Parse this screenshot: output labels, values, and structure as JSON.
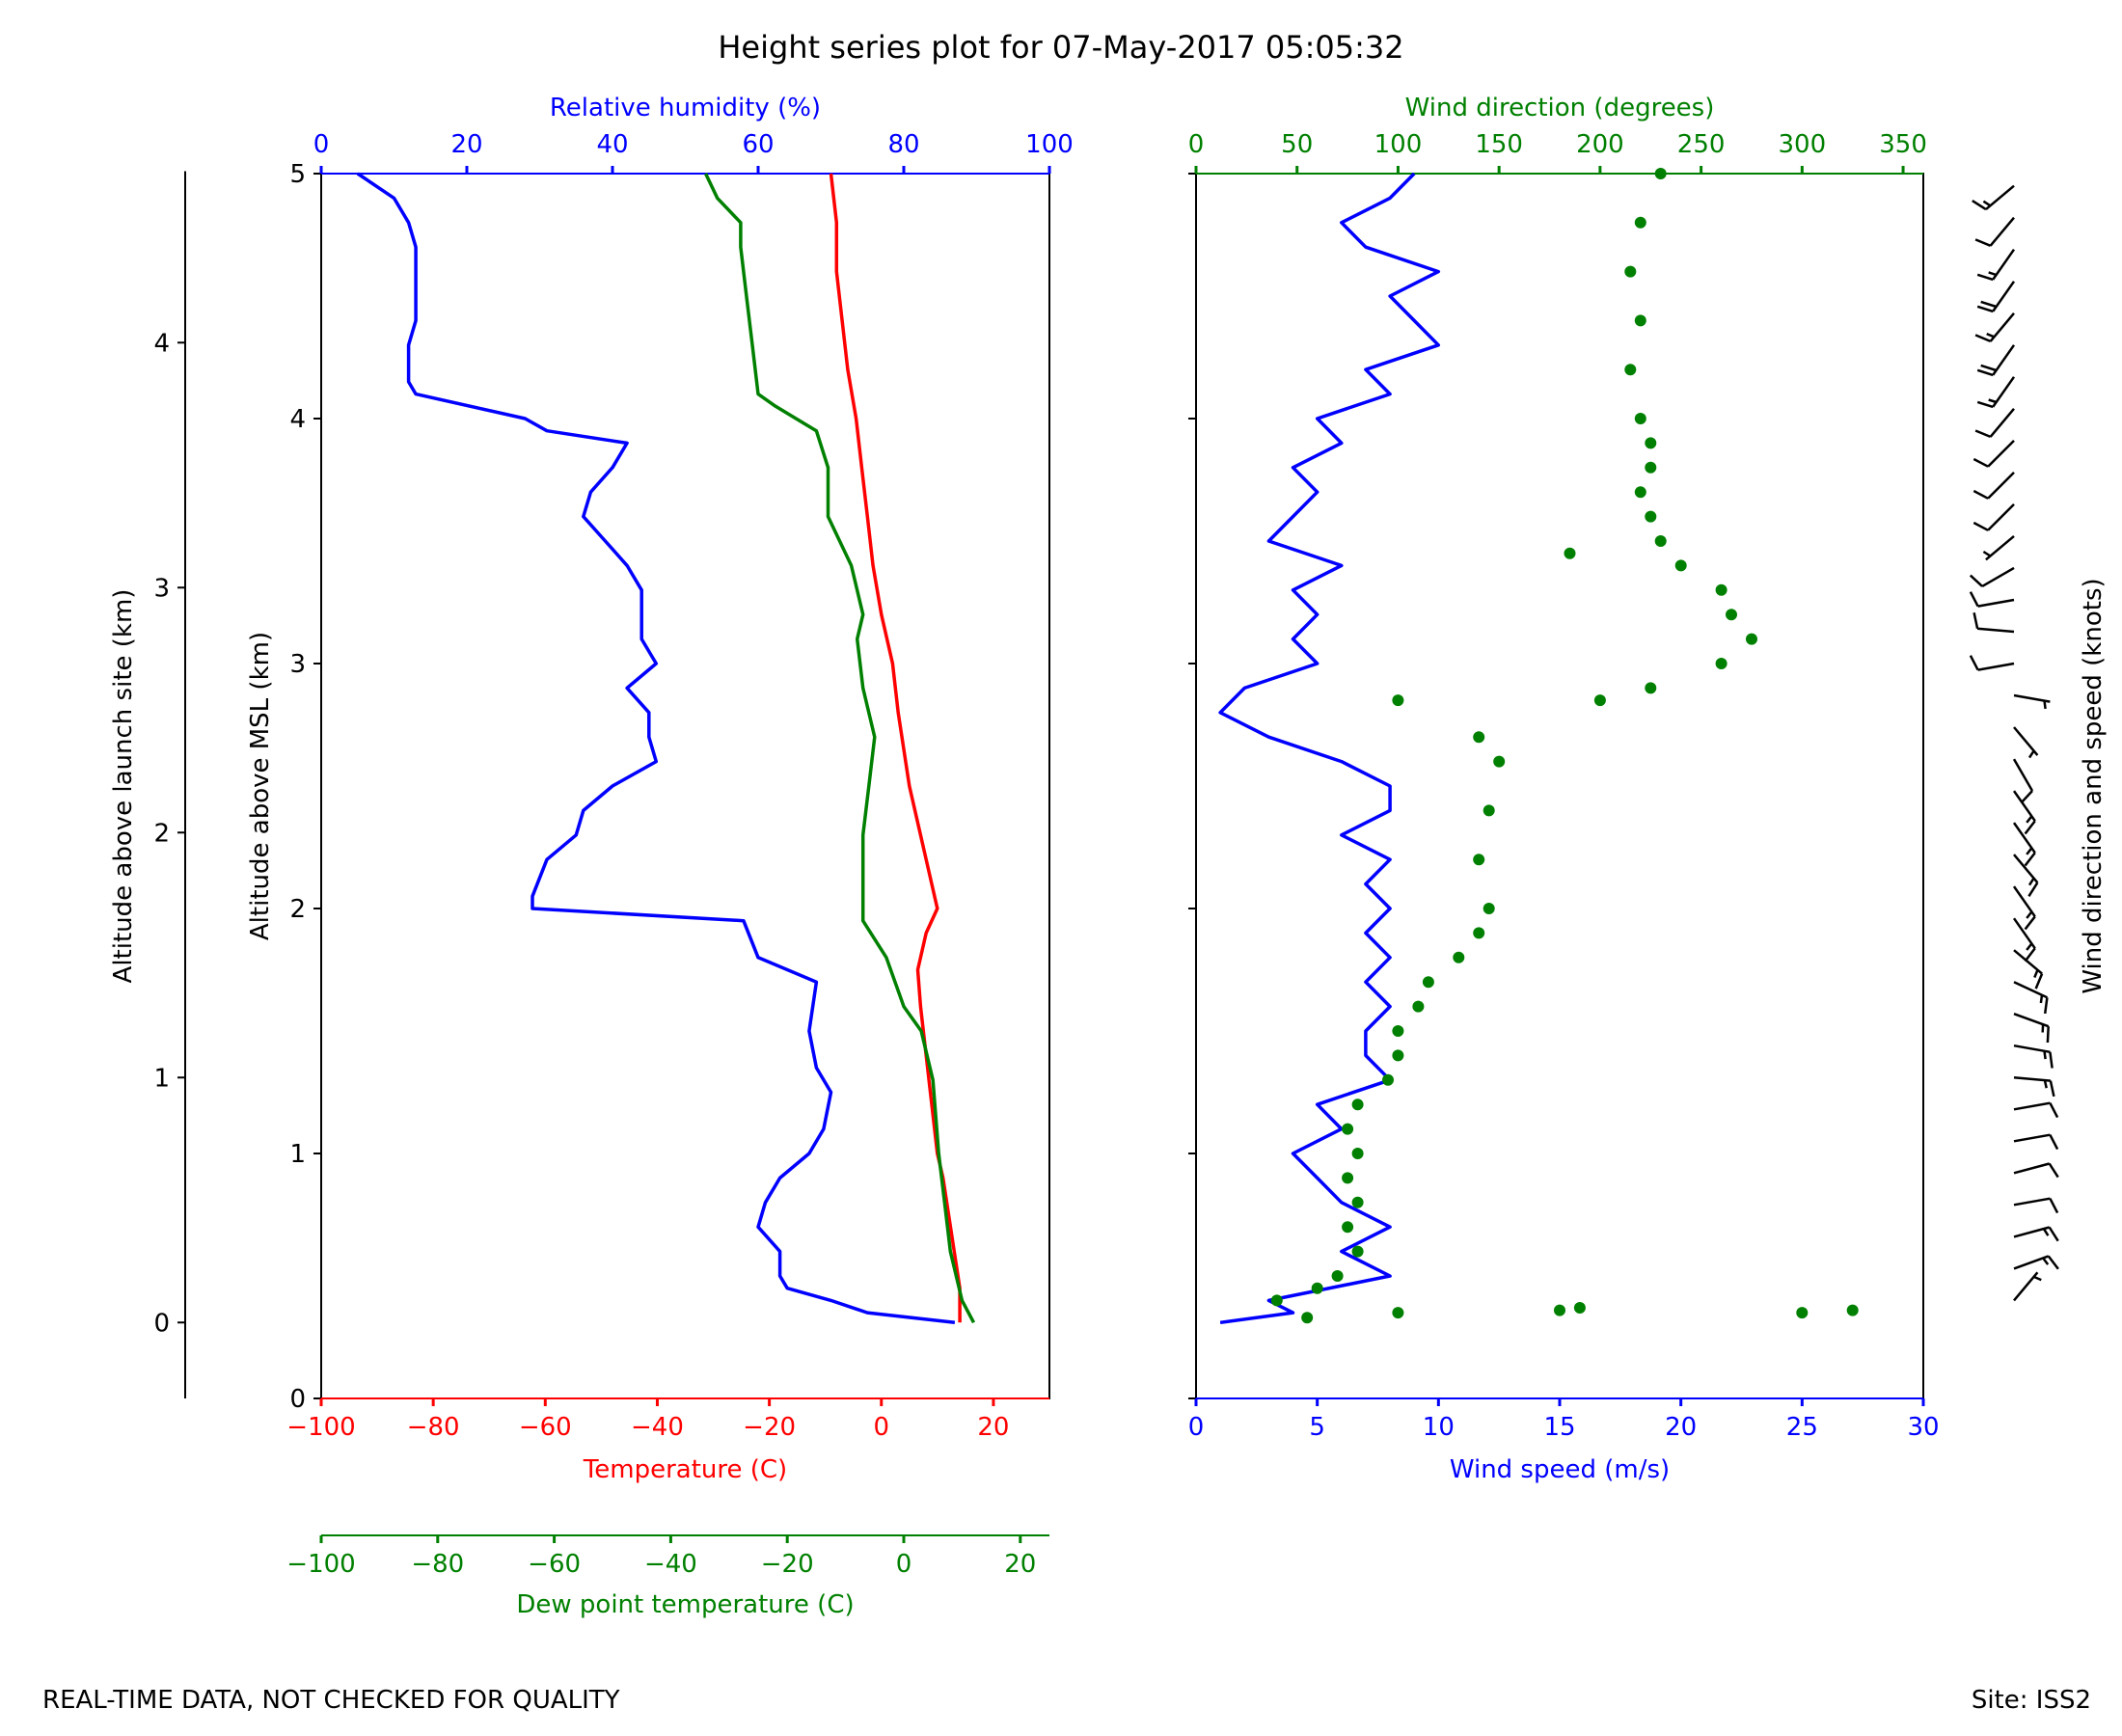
{
  "title": "Height series plot for 07-May-2017 05:05:32",
  "footer": {
    "left_note": "REAL-TIME DATA, NOT CHECKED FOR QUALITY",
    "site": "Site: ISS2"
  },
  "colors": {
    "temperature": "#ff0000",
    "dewpoint": "#008000",
    "rh": "#0000ff",
    "wind_speed": "#0000ff",
    "wind_dir": "#008000",
    "axis": "#000000"
  },
  "chart_data": [
    {
      "type": "line",
      "panel": "thermo",
      "ylabel_msl": "Altitude above MSL (km)",
      "ylabel_launch": "Altitude above launch site (km)",
      "ylim_msl": [
        0,
        5
      ],
      "yticks_msl": [
        "0",
        "1",
        "2",
        "3",
        "4",
        "5"
      ],
      "yticks_launch": [
        "0",
        "1",
        "2",
        "3",
        "4"
      ],
      "launch_site_elevation_km": 0.31,
      "temperature_axis": {
        "label": "Temperature (C)",
        "xlim": [
          -100,
          30
        ],
        "ticks": [
          "−100",
          "−80",
          "−60",
          "−40",
          "−20",
          "0",
          "20"
        ]
      },
      "dewpoint_axis": {
        "label": "Dew point temperature (C)",
        "xlim": [
          -100,
          25
        ],
        "ticks": [
          "−100",
          "−80",
          "−60",
          "−40",
          "−20",
          "0",
          "20"
        ]
      },
      "rh_axis": {
        "label": "Relative humidity (%)",
        "xlim": [
          0,
          100
        ],
        "ticks": [
          "0",
          "20",
          "40",
          "60",
          "80",
          "100"
        ]
      },
      "series": [
        {
          "name": "Temperature",
          "unit": "C",
          "axis": "temperature",
          "points": [
            [
              0.31,
              14
            ],
            [
              0.45,
              14
            ],
            [
              0.6,
              13
            ],
            [
              0.75,
              12
            ],
            [
              0.9,
              11
            ],
            [
              1.0,
              10
            ],
            [
              1.2,
              9
            ],
            [
              1.4,
              8
            ],
            [
              1.6,
              7
            ],
            [
              1.75,
              6.5
            ],
            [
              1.9,
              8
            ],
            [
              2.0,
              10
            ],
            [
              2.3,
              7
            ],
            [
              2.5,
              5
            ],
            [
              2.8,
              3
            ],
            [
              3.0,
              2
            ],
            [
              3.2,
              0
            ],
            [
              3.4,
              -1.5
            ],
            [
              3.6,
              -2.5
            ],
            [
              3.8,
              -3.5
            ],
            [
              4.0,
              -4.5
            ],
            [
              4.2,
              -6
            ],
            [
              4.4,
              -7
            ],
            [
              4.6,
              -8
            ],
            [
              4.8,
              -8
            ],
            [
              5.0,
              -9
            ]
          ]
        },
        {
          "name": "Dew point temperature",
          "unit": "C",
          "axis": "dewpoint",
          "points": [
            [
              0.31,
              12
            ],
            [
              0.4,
              10
            ],
            [
              0.6,
              8
            ],
            [
              0.8,
              7
            ],
            [
              1.0,
              6
            ],
            [
              1.3,
              5
            ],
            [
              1.5,
              3
            ],
            [
              1.6,
              0
            ],
            [
              1.8,
              -3
            ],
            [
              1.95,
              -7
            ],
            [
              2.1,
              -7
            ],
            [
              2.3,
              -7
            ],
            [
              2.5,
              -6
            ],
            [
              2.7,
              -5
            ],
            [
              2.9,
              -7
            ],
            [
              3.1,
              -8
            ],
            [
              3.2,
              -7
            ],
            [
              3.4,
              -9
            ],
            [
              3.6,
              -13
            ],
            [
              3.8,
              -13
            ],
            [
              3.95,
              -15
            ],
            [
              4.05,
              -22
            ],
            [
              4.1,
              -25
            ],
            [
              4.3,
              -26
            ],
            [
              4.5,
              -27
            ],
            [
              4.7,
              -28
            ],
            [
              4.8,
              -28
            ],
            [
              4.9,
              -32
            ],
            [
              5.0,
              -34
            ]
          ]
        },
        {
          "name": "Relative humidity",
          "unit": "%",
          "axis": "rh",
          "points": [
            [
              0.31,
              87
            ],
            [
              0.35,
              75
            ],
            [
              0.4,
              70
            ],
            [
              0.45,
              64
            ],
            [
              0.5,
              63
            ],
            [
              0.6,
              63
            ],
            [
              0.7,
              60
            ],
            [
              0.8,
              61
            ],
            [
              0.9,
              63
            ],
            [
              1.0,
              67
            ],
            [
              1.1,
              69
            ],
            [
              1.25,
              70
            ],
            [
              1.35,
              68
            ],
            [
              1.5,
              67
            ],
            [
              1.7,
              68
            ],
            [
              1.8,
              60
            ],
            [
              1.95,
              58
            ],
            [
              2.0,
              29
            ],
            [
              2.05,
              29
            ],
            [
              2.2,
              31
            ],
            [
              2.3,
              35
            ],
            [
              2.4,
              36
            ],
            [
              2.5,
              40
            ],
            [
              2.6,
              46
            ],
            [
              2.7,
              45
            ],
            [
              2.8,
              45
            ],
            [
              2.9,
              42
            ],
            [
              3.0,
              46
            ],
            [
              3.1,
              44
            ],
            [
              3.2,
              44
            ],
            [
              3.3,
              44
            ],
            [
              3.4,
              42
            ],
            [
              3.5,
              39
            ],
            [
              3.6,
              36
            ],
            [
              3.7,
              37
            ],
            [
              3.8,
              40
            ],
            [
              3.9,
              42
            ],
            [
              3.95,
              31
            ],
            [
              4.0,
              28
            ],
            [
              4.1,
              13
            ],
            [
              4.15,
              12
            ],
            [
              4.3,
              12
            ],
            [
              4.4,
              13
            ],
            [
              4.5,
              13
            ],
            [
              4.6,
              13
            ],
            [
              4.7,
              13
            ],
            [
              4.8,
              12
            ],
            [
              4.9,
              10
            ],
            [
              5.0,
              5
            ]
          ]
        }
      ]
    },
    {
      "type": "line_scatter",
      "panel": "wind",
      "ylim_msl": [
        0,
        5
      ],
      "speed_axis": {
        "label": "Wind speed (m/s)",
        "xlim": [
          0,
          30
        ],
        "ticks": [
          "0",
          "5",
          "10",
          "15",
          "20",
          "25",
          "30"
        ]
      },
      "direction_axis": {
        "label": "Wind direction (degrees)",
        "xlim": [
          0,
          360
        ],
        "ticks": [
          "0",
          "50",
          "100",
          "150",
          "200",
          "250",
          "300",
          "350"
        ]
      },
      "series": [
        {
          "name": "Wind speed",
          "unit": "m/s",
          "style": "line",
          "points": [
            [
              0.31,
              1
            ],
            [
              0.35,
              4
            ],
            [
              0.4,
              3
            ],
            [
              0.5,
              8
            ],
            [
              0.6,
              6
            ],
            [
              0.7,
              8
            ],
            [
              0.8,
              6
            ],
            [
              0.9,
              5
            ],
            [
              1.0,
              4
            ],
            [
              1.1,
              6
            ],
            [
              1.2,
              5
            ],
            [
              1.3,
              8
            ],
            [
              1.4,
              7
            ],
            [
              1.5,
              7
            ],
            [
              1.6,
              8
            ],
            [
              1.7,
              7
            ],
            [
              1.8,
              8
            ],
            [
              1.9,
              7
            ],
            [
              2.0,
              8
            ],
            [
              2.1,
              7
            ],
            [
              2.2,
              8
            ],
            [
              2.3,
              6
            ],
            [
              2.4,
              8
            ],
            [
              2.5,
              8
            ],
            [
              2.6,
              6
            ],
            [
              2.7,
              3
            ],
            [
              2.8,
              1
            ],
            [
              2.9,
              2
            ],
            [
              3.0,
              5
            ],
            [
              3.1,
              4
            ],
            [
              3.2,
              5
            ],
            [
              3.3,
              4
            ],
            [
              3.4,
              6
            ],
            [
              3.5,
              3
            ],
            [
              3.6,
              4
            ],
            [
              3.7,
              5
            ],
            [
              3.8,
              4
            ],
            [
              3.9,
              6
            ],
            [
              4.0,
              5
            ],
            [
              4.1,
              8
            ],
            [
              4.2,
              7
            ],
            [
              4.3,
              10
            ],
            [
              4.4,
              9
            ],
            [
              4.5,
              8
            ],
            [
              4.6,
              10
            ],
            [
              4.7,
              7
            ],
            [
              4.8,
              6
            ],
            [
              4.9,
              8
            ],
            [
              5.0,
              9
            ]
          ]
        },
        {
          "name": "Wind direction",
          "unit": "degrees",
          "style": "scatter",
          "points": [
            [
              0.33,
              55
            ],
            [
              0.35,
              100
            ],
            [
              0.36,
              180
            ],
            [
              0.37,
              190
            ],
            [
              0.35,
              300
            ],
            [
              0.36,
              325
            ],
            [
              0.4,
              40
            ],
            [
              0.45,
              60
            ],
            [
              0.5,
              70
            ],
            [
              0.6,
              80
            ],
            [
              0.7,
              75
            ],
            [
              0.8,
              80
            ],
            [
              0.9,
              75
            ],
            [
              1.0,
              80
            ],
            [
              1.1,
              75
            ],
            [
              1.2,
              80
            ],
            [
              1.3,
              95
            ],
            [
              1.4,
              100
            ],
            [
              1.5,
              100
            ],
            [
              1.6,
              110
            ],
            [
              1.7,
              115
            ],
            [
              1.8,
              130
            ],
            [
              1.9,
              140
            ],
            [
              2.0,
              145
            ],
            [
              2.2,
              140
            ],
            [
              2.4,
              145
            ],
            [
              2.6,
              150
            ],
            [
              2.7,
              140
            ],
            [
              2.85,
              100
            ],
            [
              2.85,
              200
            ],
            [
              2.9,
              225
            ],
            [
              3.0,
              260
            ],
            [
              3.1,
              275
            ],
            [
              3.2,
              265
            ],
            [
              3.3,
              260
            ],
            [
              3.4,
              240
            ],
            [
              3.5,
              230
            ],
            [
              3.45,
              185
            ],
            [
              3.6,
              225
            ],
            [
              3.7,
              220
            ],
            [
              3.8,
              225
            ],
            [
              3.9,
              225
            ],
            [
              4.0,
              220
            ],
            [
              4.2,
              215
            ],
            [
              4.4,
              220
            ],
            [
              4.6,
              215
            ],
            [
              4.8,
              220
            ],
            [
              5.0,
              230
            ]
          ]
        }
      ]
    },
    {
      "type": "wind_barbs",
      "panel": "barbs",
      "ylabel": "Wind direction and speed (knots)"
    }
  ]
}
